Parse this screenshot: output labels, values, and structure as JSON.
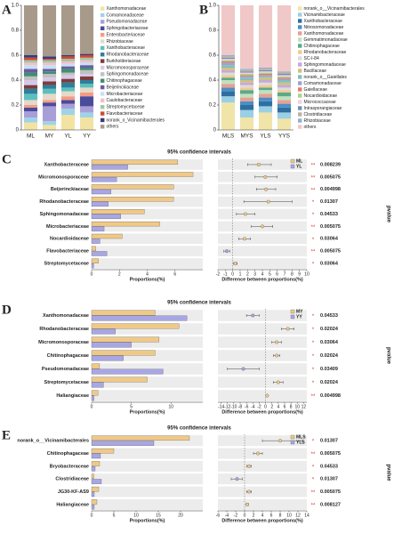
{
  "chart_data": [
    {
      "type": "stacked_bar",
      "panel": "A",
      "categories": [
        "ML",
        "MY",
        "YL",
        "YY"
      ],
      "ylim": [
        0,
        1
      ],
      "yticks": [
        0,
        0.2,
        0.4,
        0.6,
        0.8,
        {
          "value": 1,
          "label": "1.0"
        }
      ],
      "series": [
        {
          "name": "Xanthomonadaceae",
          "color": "#f3e3a3",
          "values": [
            0.06,
            0.04,
            0.12,
            0.1
          ]
        },
        {
          "name": "Comamonadaceae",
          "color": "#9fd3e8",
          "values": [
            0.04,
            0.03,
            0.05,
            0.04
          ]
        },
        {
          "name": "Pseudomonadaceae",
          "color": "#a89fd8",
          "values": [
            0.05,
            0.12,
            0.04,
            0.05
          ]
        },
        {
          "name": "Sphingobacteriaceae",
          "color": "#4b4b9b",
          "values": [
            0.03,
            0.03,
            0.03,
            0.08
          ]
        },
        {
          "name": "Enterobacteriaceae",
          "color": "#f39c84",
          "values": [
            0.02,
            0.02,
            0.03,
            0.03
          ]
        },
        {
          "name": "Rhizobiaceae",
          "color": "#e6d9c8",
          "values": [
            0.04,
            0.05,
            0.04,
            0.04
          ]
        },
        {
          "name": "Xanthobacteraceae",
          "color": "#5cbfbf",
          "values": [
            0.05,
            0.04,
            0.03,
            0.03
          ]
        },
        {
          "name": "Rhodanobacteraceae",
          "color": "#2d7f9b",
          "values": [
            0.04,
            0.03,
            0.04,
            0.03
          ]
        },
        {
          "name": "Burkholderiaceae",
          "color": "#7a3e3e",
          "values": [
            0.03,
            0.03,
            0.03,
            0.03
          ]
        },
        {
          "name": "Micromonosporaceae",
          "color": "#d8c8e8",
          "values": [
            0.04,
            0.03,
            0.03,
            0.02
          ]
        },
        {
          "name": "Sphingomonadaceae",
          "color": "#c0c0c0",
          "values": [
            0.03,
            0.03,
            0.02,
            0.03
          ]
        },
        {
          "name": "Chitinophagaceae",
          "color": "#3f8f6f",
          "values": [
            0.03,
            0.02,
            0.03,
            0.02
          ]
        },
        {
          "name": "Beijerinckiaceae",
          "color": "#6b5aa8",
          "values": [
            0.03,
            0.02,
            0.02,
            0.02
          ]
        },
        {
          "name": "Microbacteriaceae",
          "color": "#c8e0f0",
          "values": [
            0.03,
            0.03,
            0.02,
            0.02
          ]
        },
        {
          "name": "Caulobacteraceae",
          "color": "#f0c0d0",
          "values": [
            0.02,
            0.02,
            0.02,
            0.02
          ]
        },
        {
          "name": "Streptomycetaceae",
          "color": "#a0c8a0",
          "values": [
            0.02,
            0.02,
            0.02,
            0.02
          ]
        },
        {
          "name": "Flavobacteriaceae",
          "color": "#d04a30",
          "values": [
            0.02,
            0.01,
            0.02,
            0.02
          ]
        },
        {
          "name": "norank_o_Vicinamibacterales",
          "color": "#3a3a7a",
          "values": [
            0.02,
            0.02,
            0.01,
            0.01
          ]
        },
        {
          "name": "others",
          "color": "#a89a8a",
          "values": [
            0.4,
            0.41,
            0.4,
            0.39
          ]
        }
      ]
    },
    {
      "type": "stacked_bar",
      "panel": "B",
      "categories": [
        "MLS",
        "MYS",
        "YLS",
        "YYS"
      ],
      "ylim": [
        0,
        1
      ],
      "yticks": [
        0,
        0.2,
        0.4,
        0.6,
        0.8,
        {
          "value": 1,
          "label": "1.0"
        }
      ],
      "series": [
        {
          "name": "norank_o__Vicinamibacterales",
          "color": "#f1e4a9",
          "values": [
            0.22,
            0.1,
            0.14,
            0.09
          ]
        },
        {
          "name": "Vicinamibacteraceae",
          "color": "#9ad0e4",
          "values": [
            0.05,
            0.06,
            0.05,
            0.05
          ]
        },
        {
          "name": "Xanthobacteraceae",
          "color": "#2f6f9f",
          "values": [
            0.04,
            0.04,
            0.04,
            0.04
          ]
        },
        {
          "name": "Nitrosomonadaceae",
          "color": "#4a8fc8",
          "values": [
            0.03,
            0.03,
            0.03,
            0.03
          ]
        },
        {
          "name": "Xanthomonadaceae",
          "color": "#e8a090",
          "values": [
            0.03,
            0.03,
            0.03,
            0.03
          ]
        },
        {
          "name": "Gemmatimonadaceae",
          "color": "#c0e0c0",
          "values": [
            0.03,
            0.03,
            0.03,
            0.03
          ]
        },
        {
          "name": "Chitinophagaceae",
          "color": "#5aaa8a",
          "values": [
            0.02,
            0.03,
            0.02,
            0.03
          ]
        },
        {
          "name": "Rhodanobacteraceae",
          "color": "#f4c890",
          "values": [
            0.02,
            0.02,
            0.02,
            0.02
          ]
        },
        {
          "name": "SC-I-84",
          "color": "#dcdcdc",
          "values": [
            0.02,
            0.02,
            0.02,
            0.02
          ]
        },
        {
          "name": "Sphingomonadaceae",
          "color": "#c8a8d8",
          "values": [
            0.02,
            0.02,
            0.02,
            0.02
          ]
        },
        {
          "name": "Bacillaceae",
          "color": "#d0c080",
          "values": [
            0.02,
            0.02,
            0.02,
            0.02
          ]
        },
        {
          "name": "norank_o__Gaiellales",
          "color": "#80c0c0",
          "values": [
            0.02,
            0.02,
            0.01,
            0.02
          ]
        },
        {
          "name": "Comamonadaceae",
          "color": "#a0a0d0",
          "values": [
            0.02,
            0.01,
            0.01,
            0.01
          ]
        },
        {
          "name": "Gaiellaceae",
          "color": "#e08060",
          "values": [
            0.01,
            0.01,
            0.01,
            0.01
          ]
        },
        {
          "name": "Nocardioidaceae",
          "color": "#b0d090",
          "values": [
            0.01,
            0.01,
            0.01,
            0.01
          ]
        },
        {
          "name": "Micrococcaceae",
          "color": "#f0d0e0",
          "values": [
            0.01,
            0.01,
            0.01,
            0.01
          ]
        },
        {
          "name": "Intrasporangiaceae",
          "color": "#7090b0",
          "values": [
            0.01,
            0.01,
            0.01,
            0.01
          ]
        },
        {
          "name": "Clostridiaceae",
          "color": "#c0b0a0",
          "values": [
            0.01,
            0.01,
            0.01,
            0.01
          ]
        },
        {
          "name": "Rhizobiaceae",
          "color": "#90b0d0",
          "values": [
            0.01,
            0.01,
            0.01,
            0.01
          ]
        },
        {
          "name": "others",
          "color": "#f0c8c8",
          "values": [
            0.4,
            0.51,
            0.5,
            0.53
          ]
        }
      ]
    },
    {
      "type": "extended_error_bar",
      "panel": "C",
      "title": "95% confidence intervals",
      "categories": [
        "Xanthobacteraceae",
        "Micromonosporaceae",
        "Beijerinckiaceae",
        "Rhodanobacteraceae",
        "Sphingomonadaceae",
        "Microbacteriaceae",
        "Nocardioidaceae",
        "Flavobacteriaceae",
        "Streptomycetaceae"
      ],
      "series": [
        {
          "name": "ML",
          "color": "#f0c987",
          "values": [
            6.2,
            7.3,
            5.9,
            5.9,
            3.8,
            4.9,
            2.2,
            0.3,
            0.5
          ]
        },
        {
          "name": "YL",
          "color": "#a9a6e6",
          "values": [
            2.6,
            1.8,
            1.4,
            1.2,
            2.1,
            0.9,
            0.6,
            1.1,
            0.15
          ]
        }
      ],
      "xlabel": "Proportions(%)",
      "xlim": [
        0,
        8
      ],
      "xticks": [
        0,
        2,
        4,
        6
      ],
      "difference": {
        "xlabel": "Difference between proportions(%)",
        "values": [
          3.5,
          4.4,
          4.5,
          4.8,
          1.7,
          4.0,
          1.6,
          -0.8,
          0.35
        ],
        "ci_low": [
          2.0,
          3.0,
          3.2,
          1.5,
          0.5,
          2.5,
          0.8,
          -1.2,
          0.1
        ],
        "ci_high": [
          5.2,
          6.0,
          5.8,
          8.0,
          3.0,
          5.4,
          2.4,
          -0.4,
          0.6
        ],
        "xlim": [
          -2,
          10
        ],
        "xticks": [
          -2,
          -1,
          0,
          1,
          2,
          3,
          4,
          5,
          6,
          7,
          8,
          9,
          10
        ]
      },
      "pvalues": [
        0.008239,
        0.005075,
        0.004998,
        0.01307,
        0.04533,
        0.005075,
        0.03064,
        0.005075,
        0.03064
      ],
      "significance": [
        "**",
        "**",
        "**",
        "*",
        "*",
        "**",
        "*",
        "**",
        "*"
      ],
      "significance_color": "#d9312b",
      "pvalue_label": "pvalue"
    },
    {
      "type": "extended_error_bar",
      "panel": "D",
      "title": "95% confidence intervals",
      "categories": [
        "Xanthomonadaceae",
        "Rhodanobacteraceae",
        "Micromonosporaceae",
        "Chitinophagaceae",
        "Pseudomonadaceae",
        "Streptomycetaceae",
        "Haliangiaceae"
      ],
      "series": [
        {
          "name": "MY",
          "color": "#f0c987",
          "values": [
            8,
            11,
            8.5,
            8,
            1,
            7,
            0.8
          ]
        },
        {
          "name": "YY",
          "color": "#a9a6e6",
          "values": [
            12,
            3,
            5,
            4,
            9,
            1.5,
            0.3
          ]
        }
      ],
      "xlabel": "Proportions(%)",
      "xlim": [
        0,
        14
      ],
      "xticks": [
        0,
        5,
        10
      ],
      "difference": {
        "xlabel": "Difference between proportions(%)",
        "values": [
          -4,
          7,
          3.5,
          3.5,
          -7,
          4,
          0.5
        ],
        "ci_low": [
          -6,
          5,
          2,
          2.5,
          -12,
          2.5,
          0.2
        ],
        "ci_high": [
          -2,
          9,
          5,
          4.5,
          -2,
          5.5,
          0.8
        ],
        "xlim": [
          -15,
          13
        ],
        "xticks": [
          -14,
          -12,
          -10,
          -8,
          -6,
          -4,
          -2,
          0,
          2,
          4,
          6,
          8,
          10,
          12
        ]
      },
      "pvalues": [
        0.04533,
        0.02024,
        0.03064,
        0.02024,
        0.03409,
        0.02024,
        0.004998
      ],
      "significance": [
        "*",
        "*",
        "*",
        "*",
        "*",
        "*",
        "**"
      ],
      "significance_color": "#d9312b",
      "pvalue_label": "pvalue"
    },
    {
      "type": "extended_error_bar",
      "panel": "E",
      "title": "95% confidence intervals",
      "categories": [
        "norank_o__Vicinamibacterales",
        "Chitinophagaceae",
        "Bryobacteraceae",
        "Clostridiaceae",
        "JG30-KF-AS9",
        "Haliangiaceae"
      ],
      "series": [
        {
          "name": "MLS",
          "color": "#f0c987",
          "values": [
            22,
            5,
            1.8,
            0.5,
            1.6,
            1.2
          ]
        },
        {
          "name": "YLS",
          "color": "#a9a6e6",
          "values": [
            14,
            2,
            0.8,
            2.2,
            0.6,
            0.6
          ]
        }
      ],
      "xlabel": "Proportions(%)",
      "xlim": [
        0,
        25
      ],
      "xticks": [
        0,
        5,
        10,
        15,
        20
      ],
      "difference": {
        "xlabel": "Difference between proportions(%)",
        "values": [
          8,
          3,
          1,
          -1.7,
          1,
          0.6
        ],
        "ci_low": [
          4,
          2,
          0.5,
          -3,
          0.5,
          0.3
        ],
        "ci_high": [
          13,
          4,
          1.5,
          -0.5,
          1.5,
          0.9
        ],
        "xlim": [
          -6,
          14
        ],
        "xticks": [
          -6,
          -4,
          -2,
          0,
          2,
          4,
          6,
          8,
          10,
          12,
          14
        ]
      },
      "pvalues": [
        0.01307,
        0.005075,
        0.04533,
        0.01307,
        0.005075,
        0.008127
      ],
      "significance": [
        "*",
        "**",
        "*",
        "*",
        "**",
        "**"
      ],
      "significance_color": "#d9312b",
      "pvalue_label": "pvalue"
    }
  ]
}
